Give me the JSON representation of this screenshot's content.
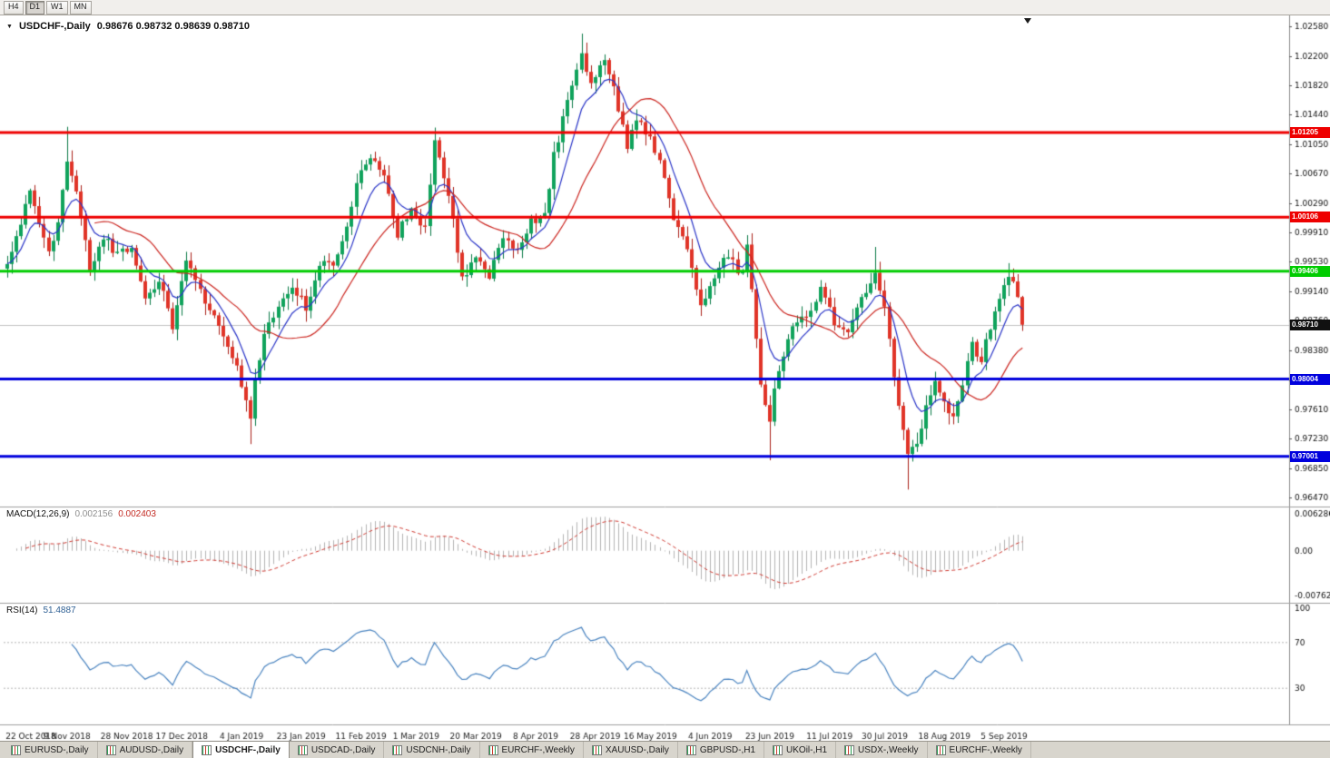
{
  "toolbar": {
    "timeframes": [
      {
        "label": "H4",
        "active": false
      },
      {
        "label": "D1",
        "active": true
      },
      {
        "label": "W1",
        "active": false
      },
      {
        "label": "MN",
        "active": false
      }
    ]
  },
  "chart_data": {
    "type": "candlestick",
    "symbol": "USDCHF-,Daily",
    "ohlc_line": "0.98676 0.98732 0.98639 0.98710",
    "current_price": 0.9871,
    "current_price_label": "0.98710",
    "price_axis": {
      "min": 0.9642,
      "max": 1.0262,
      "tick_labels": [
        "1.02580",
        "1.02200",
        "1.01820",
        "1.01440",
        "1.01050",
        "1.00670",
        "1.00290",
        "0.99910",
        "0.99530",
        "0.99140",
        "0.98760",
        "0.98380",
        "0.97990",
        "0.97610",
        "0.97230",
        "0.96850",
        "0.96470"
      ]
    },
    "x_axis_dates": [
      "22 Oct 2018",
      "9 Nov 2018",
      "28 Nov 2018",
      "17 Dec 2018",
      "4 Jan 2019",
      "23 Jan 2019",
      "11 Feb 2019",
      "1 Mar 2019",
      "20 Mar 2019",
      "8 Apr 2019",
      "28 Apr 2019",
      "16 May 2019",
      "4 Jun 2019",
      "23 Jun 2019",
      "11 Jul 2019",
      "30 Jul 2019",
      "18 Aug 2019",
      "5 Sep 2019"
    ],
    "candles": {
      "count": 222,
      "up_fill": "#10a35c",
      "up_wick": "#0a7a46",
      "down_fill": "#e03428",
      "down_wick": "#aa1f18",
      "close_anchors": [
        [
          0,
          0.995
        ],
        [
          3,
          1.0005
        ],
        [
          5,
          1.004
        ],
        [
          7,
          1.0005
        ],
        [
          9,
          0.996
        ],
        [
          11,
          1.001
        ],
        [
          13,
          1.0085
        ],
        [
          15,
          1.004
        ],
        [
          16,
          1.001
        ],
        [
          18,
          0.994
        ],
        [
          21,
          0.9985
        ],
        [
          24,
          0.996
        ],
        [
          27,
          0.9975
        ],
        [
          30,
          0.99
        ],
        [
          33,
          0.993
        ],
        [
          36,
          0.987
        ],
        [
          39,
          0.996
        ],
        [
          42,
          0.9915
        ],
        [
          45,
          0.988
        ],
        [
          48,
          0.9845
        ],
        [
          51,
          0.9795
        ],
        [
          53,
          0.975
        ],
        [
          54,
          0.98
        ],
        [
          56,
          0.9855
        ],
        [
          59,
          0.99
        ],
        [
          62,
          0.992
        ],
        [
          65,
          0.9895
        ],
        [
          68,
          0.995
        ],
        [
          71,
          0.9945
        ],
        [
          74,
          1.0
        ],
        [
          76,
          1.006
        ],
        [
          79,
          1.009
        ],
        [
          82,
          1.006
        ],
        [
          85,
          0.999
        ],
        [
          88,
          1.002
        ],
        [
          91,
          0.9995
        ],
        [
          93,
          1.0115
        ],
        [
          96,
          1.004
        ],
        [
          99,
          0.993
        ],
        [
          102,
          0.9965
        ],
        [
          105,
          0.9935
        ],
        [
          108,
          0.9985
        ],
        [
          111,
          0.997
        ],
        [
          114,
          1.0005
        ],
        [
          117,
          1.0015
        ],
        [
          119,
          1.009
        ],
        [
          122,
          1.016
        ],
        [
          125,
          1.0225
        ],
        [
          127,
          1.0185
        ],
        [
          130,
          1.0215
        ],
        [
          132,
          1.0175
        ],
        [
          135,
          1.0105
        ],
        [
          137,
          1.014
        ],
        [
          140,
          1.011
        ],
        [
          142,
          1.0085
        ],
        [
          145,
          1.001
        ],
        [
          148,
          0.9965
        ],
        [
          151,
          0.9895
        ],
        [
          154,
          0.9935
        ],
        [
          157,
          0.996
        ],
        [
          160,
          0.9935
        ],
        [
          161,
          0.998
        ],
        [
          164,
          0.979
        ],
        [
          166,
          0.975
        ],
        [
          168,
          0.9815
        ],
        [
          171,
          0.9865
        ],
        [
          174,
          0.9885
        ],
        [
          177,
          0.9915
        ],
        [
          180,
          0.9875
        ],
        [
          183,
          0.9855
        ],
        [
          186,
          0.9905
        ],
        [
          189,
          0.9935
        ],
        [
          191,
          0.989
        ],
        [
          194,
          0.976
        ],
        [
          196,
          0.9705
        ],
        [
          198,
          0.972
        ],
        [
          200,
          0.9765
        ],
        [
          202,
          0.98
        ],
        [
          204,
          0.977
        ],
        [
          206,
          0.9748
        ],
        [
          208,
          0.9795
        ],
        [
          210,
          0.9845
        ],
        [
          212,
          0.9825
        ],
        [
          214,
          0.987
        ],
        [
          216,
          0.9905
        ],
        [
          218,
          0.9935
        ],
        [
          220,
          0.9908
        ],
        [
          221,
          0.9871
        ]
      ],
      "wick_overrides": [
        [
          13,
          "high",
          1.0128
        ],
        [
          53,
          "low",
          0.9716
        ],
        [
          93,
          "high",
          1.0127
        ],
        [
          125,
          "high",
          1.0249
        ],
        [
          130,
          "high",
          1.0222
        ],
        [
          166,
          "low",
          0.9695
        ],
        [
          189,
          "high",
          0.9972
        ],
        [
          196,
          "low",
          0.9657
        ],
        [
          218,
          "high",
          0.9951
        ]
      ]
    },
    "moving_averages": [
      {
        "name": "fast",
        "method": "ema",
        "period": 8,
        "color": "#2a35c8"
      },
      {
        "name": "slow",
        "method": "sma",
        "period": 20,
        "color": "#cc2620"
      }
    ],
    "levels": [
      {
        "label": "1.01205",
        "price": 1.01205,
        "color": "#ee0000"
      },
      {
        "label": "1.00106",
        "price": 1.00106,
        "color": "#ee0000"
      },
      {
        "label": "0.99406",
        "price": 0.99406,
        "color": "#00cc00"
      },
      {
        "label": "0.98004",
        "price": 0.98004,
        "color": "#0000dd"
      },
      {
        "label": "0.97001",
        "price": 0.97001,
        "color": "#0000dd"
      }
    ],
    "macd": {
      "label": "MACD(12,26,9)",
      "value_main": "0.002156",
      "value_signal": "0.002403",
      "fast": 12,
      "slow": 26,
      "signal": 9,
      "axis_labels": {
        "max": "0.006286",
        "zero": "0.00",
        "min": "-0.00762"
      },
      "axis_max": 0.006286,
      "axis_min": -0.00762,
      "hist_color": "#b4b4b4",
      "signal_color": "#d03a32"
    },
    "rsi": {
      "label": "RSI(14)",
      "value": "51.4887",
      "period": 14,
      "axis_labels": [
        "100",
        "70",
        "30"
      ],
      "upper": 70,
      "lower": 30,
      "color": "#4a84c0",
      "axis_max": 100,
      "axis_min": 0
    }
  },
  "tabs": [
    {
      "label": "EURUSD-,Daily",
      "active": false
    },
    {
      "label": "AUDUSD-,Daily",
      "active": false
    },
    {
      "label": "USDCHF-,Daily",
      "active": true
    },
    {
      "label": "USDCAD-,Daily",
      "active": false
    },
    {
      "label": "USDCNH-,Daily",
      "active": false
    },
    {
      "label": "EURCHF-,Weekly",
      "active": false
    },
    {
      "label": "XAUUSD-,Daily",
      "active": false
    },
    {
      "label": "GBPUSD-,H1",
      "active": false
    },
    {
      "label": "UKOil-,H1",
      "active": false
    },
    {
      "label": "USDX-,Weekly",
      "active": false
    },
    {
      "label": "EURCHF-,Weekly",
      "active": false
    }
  ]
}
